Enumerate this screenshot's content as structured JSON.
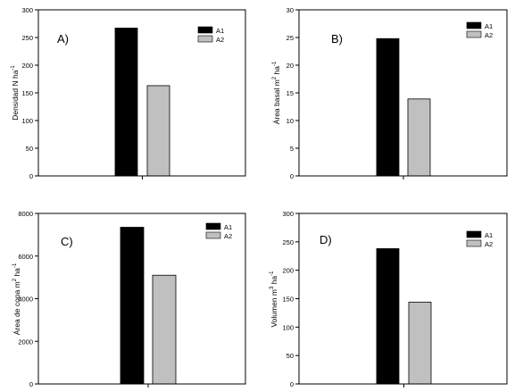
{
  "colors": {
    "A1": "#000000",
    "A2": "#c0c0c0",
    "axis": "#000000",
    "background": "#ffffff"
  },
  "chart_data": [
    {
      "type": "bar",
      "panel_label": "A)",
      "ylabel": "Densidad N ha",
      "ylabel_sup": "-1",
      "ylim": [
        0,
        300
      ],
      "yticks": [
        "0",
        "50",
        "100",
        "150",
        "200",
        "250",
        "300"
      ],
      "grid": false,
      "legend_position": "top-right",
      "series": [
        {
          "name": "A1",
          "values": [
            267
          ]
        },
        {
          "name": "A2",
          "values": [
            163
          ]
        }
      ]
    },
    {
      "type": "bar",
      "panel_label": "B)",
      "ylabel": "Área basal m",
      "ylabel_sup": "2",
      "ylabel_tail": " ha",
      "ylabel_tail_sup": "-1",
      "ylim": [
        0,
        30
      ],
      "yticks": [
        "0",
        "5",
        "10",
        "15",
        "20",
        "25",
        "30"
      ],
      "grid": false,
      "legend_position": "top-right",
      "series": [
        {
          "name": "A1",
          "values": [
            24.8
          ]
        },
        {
          "name": "A2",
          "values": [
            13.9
          ]
        }
      ]
    },
    {
      "type": "bar",
      "panel_label": "C)",
      "ylabel": "Área de copa m",
      "ylabel_sup": "2",
      "ylabel_tail": " ha",
      "ylabel_tail_sup": "-1",
      "ylim": [
        0,
        8000
      ],
      "yticks": [
        "0",
        "2000",
        "4000",
        "6000",
        "8000"
      ],
      "grid": false,
      "legend_position": "top-right",
      "series": [
        {
          "name": "A1",
          "values": [
            7350
          ]
        },
        {
          "name": "A2",
          "values": [
            5100
          ]
        }
      ]
    },
    {
      "type": "bar",
      "panel_label": "D)",
      "ylabel": "Volumen m",
      "ylabel_sup": "3",
      "ylabel_tail": " ha",
      "ylabel_tail_sup": "-1",
      "ylim": [
        0,
        300
      ],
      "yticks": [
        "0",
        "50",
        "100",
        "150",
        "200",
        "250",
        "300"
      ],
      "grid": false,
      "legend_position": "top-right",
      "series": [
        {
          "name": "A1",
          "values": [
            238
          ]
        },
        {
          "name": "A2",
          "values": [
            144
          ]
        }
      ]
    }
  ]
}
